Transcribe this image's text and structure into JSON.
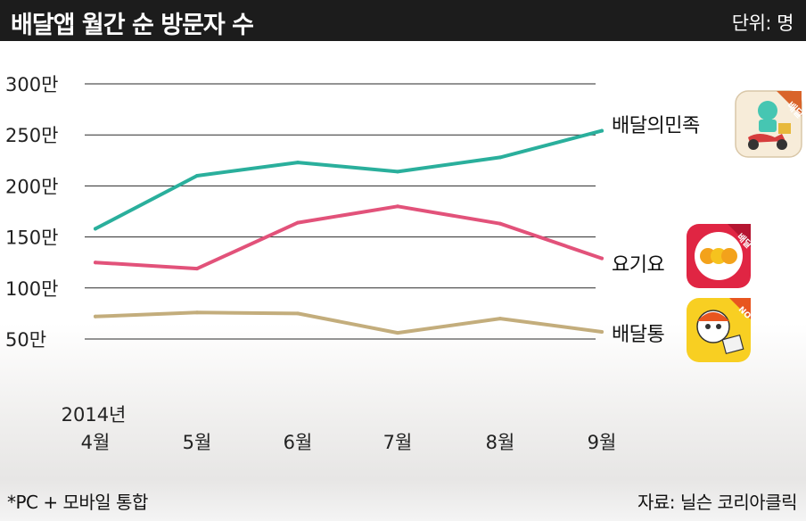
{
  "header": {
    "title": "배달앱 월간 순 방문자 수",
    "unit": "단위: 명"
  },
  "footer": {
    "note": "*PC + 모바일 통합",
    "source": "자료: 닐슨 코리아클릭"
  },
  "icons": {
    "baemin": {
      "name": "baemin-app-icon",
      "badge": "배달"
    },
    "yogiyo": {
      "name": "yogiyo-app-icon",
      "badge": "배달"
    },
    "baedaltong": {
      "name": "baedaltong-app-icon",
      "badge": "NO"
    }
  },
  "chart_data": {
    "type": "line",
    "title": "배달앱 월간 순 방문자 수",
    "unit": "단위: 명",
    "x_year_label": "2014년",
    "categories": [
      "4월",
      "5월",
      "6월",
      "7월",
      "8월",
      "9월"
    ],
    "y_ticks": [
      50,
      100,
      150,
      200,
      250,
      300
    ],
    "y_tick_labels": [
      "50만",
      "100만",
      "150만",
      "200만",
      "250만",
      "300만"
    ],
    "ylim": [
      0,
      300
    ],
    "grid": true,
    "series": [
      {
        "name": "배달의민족",
        "color": "#2aaf9c",
        "values": [
          158,
          210,
          223,
          214,
          228,
          254
        ]
      },
      {
        "name": "요기요",
        "color": "#e2527a",
        "values": [
          125,
          119,
          164,
          180,
          163,
          129
        ]
      },
      {
        "name": "배달통",
        "color": "#c3ad7c",
        "values": [
          72,
          76,
          75,
          56,
          70,
          57
        ]
      }
    ]
  }
}
